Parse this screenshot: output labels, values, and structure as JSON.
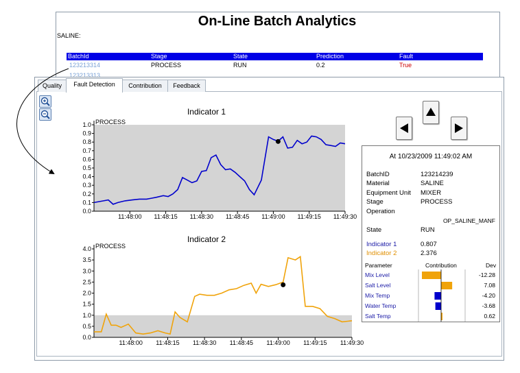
{
  "app": {
    "title": "On-Line Batch Analytics",
    "product_label": "SALINE:"
  },
  "batch_table": {
    "headers": [
      "BatchId",
      "Stage",
      "State",
      "Prediction",
      "Fault"
    ],
    "rows": [
      {
        "batch_id": "123213314",
        "stage": "PROCESS",
        "state": "RUN",
        "prediction": "0.2",
        "fault": "True"
      },
      {
        "batch_id": "123213313"
      }
    ]
  },
  "tabs": [
    {
      "label": "Quality",
      "active": false
    },
    {
      "label": "Fault Detection",
      "active": true
    },
    {
      "label": "Contribution",
      "active": false
    },
    {
      "label": "Feedback",
      "active": false
    }
  ],
  "toolbar": {
    "zoom_in_icon": "zoom-in-icon",
    "zoom_out_icon": "zoom-out-icon"
  },
  "navigation": {
    "up_icon": "up-arrow-icon",
    "left_icon": "left-arrow-icon",
    "right_icon": "right-arrow-icon"
  },
  "colors": {
    "series1": "#0000cc",
    "series2": "#f0a30a",
    "header_bg": "#0000e6",
    "fault_text": "#cc0000",
    "plot_bg": "#d4d4d4"
  },
  "info": {
    "timestamp": "At 10/23/2009 11:49:02 AM",
    "fields": [
      {
        "label": "BatchID",
        "value": "123214239"
      },
      {
        "label": "Material",
        "value": "SALINE"
      },
      {
        "label": "Equipment Unit",
        "value": "MIXER"
      },
      {
        "label": "Stage",
        "value": "PROCESS"
      },
      {
        "label": "Operation",
        "value": "OP_SALINE_MANF"
      },
      {
        "label": "State",
        "value": "RUN"
      }
    ],
    "indicators": [
      {
        "label": "Indicator 1",
        "value": "0.807"
      },
      {
        "label": "Indicator 2",
        "value": "2.376"
      }
    ],
    "contrib_headers": [
      "Parameter",
      "Contribution",
      "Dev"
    ],
    "contrib_rows": [
      {
        "parameter": "Mix Level",
        "dev": "-12.28",
        "value": -12.28
      },
      {
        "parameter": "Salt Level",
        "dev": "7.08",
        "value": 7.08
      },
      {
        "parameter": "Mix Temp",
        "dev": "-4.20",
        "value": -4.2
      },
      {
        "parameter": "Water Temp",
        "dev": "-3.68",
        "value": -3.68
      },
      {
        "parameter": "Salt Temp",
        "dev": "0.62",
        "value": 0.62
      }
    ]
  },
  "chart_data": [
    {
      "type": "line",
      "title": "Indicator 1",
      "annotation": "PROCESS",
      "ylim": [
        0,
        1.0
      ],
      "yticks": [
        "0.0",
        "0.1",
        "0.2",
        "0.3",
        "0.4",
        "0.5",
        "0.6",
        "0.7",
        "0.8",
        "0.9",
        "1.0"
      ],
      "xlim": [
        "11:47:45",
        "11:49:30"
      ],
      "xticks": [
        "11:48:00",
        "11:48:15",
        "11:48:30",
        "11:48:45",
        "11:49:00",
        "11:49:15",
        "11:49:30"
      ],
      "limit_band": [
        0,
        1.0
      ],
      "series": [
        {
          "x": [
            "11:47:45",
            "11:47:49",
            "11:47:51",
            "11:47:53",
            "11:47:55",
            "11:47:58",
            "11:48:01",
            "11:48:04",
            "11:48:07",
            "11:48:09",
            "11:48:11",
            "11:48:14",
            "11:48:16",
            "11:48:18",
            "11:48:20",
            "11:48:22",
            "11:48:24",
            "11:48:26",
            "11:48:28",
            "11:48:30",
            "11:48:32",
            "11:48:34",
            "11:48:36",
            "11:48:38",
            "11:48:40",
            "11:48:42",
            "11:48:44",
            "11:48:46",
            "11:48:48",
            "11:48:50",
            "11:48:52",
            "11:48:55",
            "11:48:58",
            "11:49:00",
            "11:49:02",
            "11:49:04",
            "11:49:06",
            "11:49:08",
            "11:49:10",
            "11:49:12",
            "11:49:14",
            "11:49:16",
            "11:49:18",
            "11:49:20",
            "11:49:22",
            "11:49:24",
            "11:49:26",
            "11:49:28",
            "11:49:30"
          ],
          "y": [
            0.1,
            0.12,
            0.13,
            0.08,
            0.1,
            0.12,
            0.13,
            0.14,
            0.14,
            0.15,
            0.16,
            0.18,
            0.17,
            0.2,
            0.25,
            0.39,
            0.36,
            0.33,
            0.35,
            0.46,
            0.47,
            0.62,
            0.65,
            0.54,
            0.48,
            0.49,
            0.45,
            0.4,
            0.35,
            0.25,
            0.19,
            0.36,
            0.86,
            0.83,
            0.81,
            0.86,
            0.73,
            0.74,
            0.82,
            0.78,
            0.8,
            0.87,
            0.86,
            0.83,
            0.77,
            0.76,
            0.75,
            0.79,
            0.78
          ]
        }
      ],
      "marker": {
        "x": "11:49:02",
        "y": 0.807
      }
    },
    {
      "type": "line",
      "title": "Indicator 2",
      "annotation": "PROCESS",
      "ylim": [
        0,
        4.0
      ],
      "yticks": [
        "0.0",
        "0.5",
        "1.0",
        "1.5",
        "2.0",
        "2.5",
        "3.0",
        "3.5",
        "4.0"
      ],
      "xlim": [
        "11:47:45",
        "11:49:30"
      ],
      "xticks": [
        "11:48:00",
        "11:48:15",
        "11:48:30",
        "11:48:45",
        "11:49:00",
        "11:49:15",
        "11:49:30"
      ],
      "limit_band": [
        0,
        1.0
      ],
      "series": [
        {
          "x": [
            "11:47:45",
            "11:47:48",
            "11:47:50",
            "11:47:52",
            "11:47:54",
            "11:47:56",
            "11:47:59",
            "11:48:02",
            "11:48:05",
            "11:48:08",
            "11:48:11",
            "11:48:14",
            "11:48:16",
            "11:48:18",
            "11:48:20",
            "11:48:23",
            "11:48:26",
            "11:48:28",
            "11:48:31",
            "11:48:34",
            "11:48:37",
            "11:48:40",
            "11:48:43",
            "11:48:46",
            "11:48:49",
            "11:48:51",
            "11:48:53",
            "11:48:56",
            "11:48:59",
            "11:49:02",
            "11:49:04",
            "11:49:07",
            "11:49:09",
            "11:49:11",
            "11:49:14",
            "11:49:17",
            "11:49:20",
            "11:49:23",
            "11:49:26",
            "11:49:30"
          ],
          "y": [
            0.25,
            0.25,
            1.05,
            0.55,
            0.55,
            0.45,
            0.6,
            0.2,
            0.15,
            0.2,
            0.3,
            0.2,
            0.15,
            1.15,
            0.9,
            0.7,
            1.85,
            1.95,
            1.9,
            1.9,
            2.0,
            2.15,
            2.2,
            2.35,
            2.45,
            2.0,
            2.4,
            2.3,
            2.38,
            2.5,
            3.6,
            3.5,
            3.65,
            1.4,
            1.4,
            1.3,
            0.95,
            0.85,
            0.7,
            0.75
          ]
        }
      ],
      "marker": {
        "x": "11:49:02",
        "y": 2.376
      }
    }
  ]
}
